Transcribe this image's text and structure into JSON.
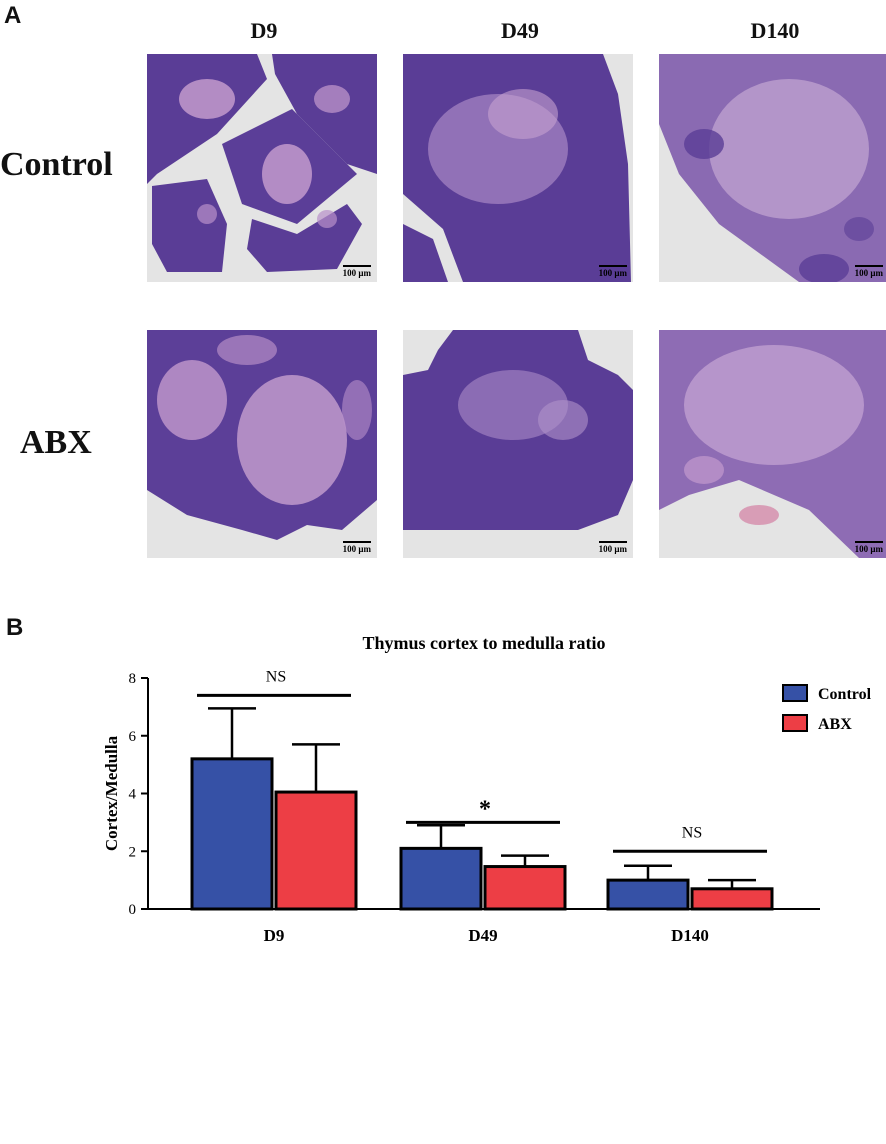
{
  "panel_a": {
    "letter": "A",
    "columns": [
      "D9",
      "D49",
      "D140"
    ],
    "rows": [
      "Control",
      "ABX"
    ],
    "scale_label": "100 μm",
    "tissue_colors": {
      "cortex": "#5a3d96",
      "medulla": "#c59ace",
      "background": "#e6e6e6"
    }
  },
  "panel_b": {
    "letter": "B"
  },
  "chart_data": {
    "type": "bar",
    "title": "Thymus cortex to medulla ratio",
    "xlabel": "",
    "ylabel": "Cortex/Medulla",
    "categories": [
      "D9",
      "D49",
      "D140"
    ],
    "ylim": [
      0,
      8
    ],
    "yticks": [
      0,
      2,
      4,
      6,
      8
    ],
    "legend_position": "top-right",
    "grid": false,
    "series": [
      {
        "name": "Control",
        "color": "#3651a6",
        "values": [
          5.2,
          2.1,
          1.0
        ],
        "error_upper": [
          1.75,
          0.8,
          0.5
        ]
      },
      {
        "name": "ABX",
        "color": "#ed3e45",
        "values": [
          4.05,
          1.47,
          0.7
        ],
        "error_upper": [
          1.65,
          0.38,
          0.3
        ]
      }
    ],
    "significance": [
      {
        "category": "D9",
        "label": "NS",
        "y": 7.4
      },
      {
        "category": "D49",
        "label": "*",
        "y": 3.0
      },
      {
        "category": "D140",
        "label": "NS",
        "y": 2.0
      }
    ]
  }
}
